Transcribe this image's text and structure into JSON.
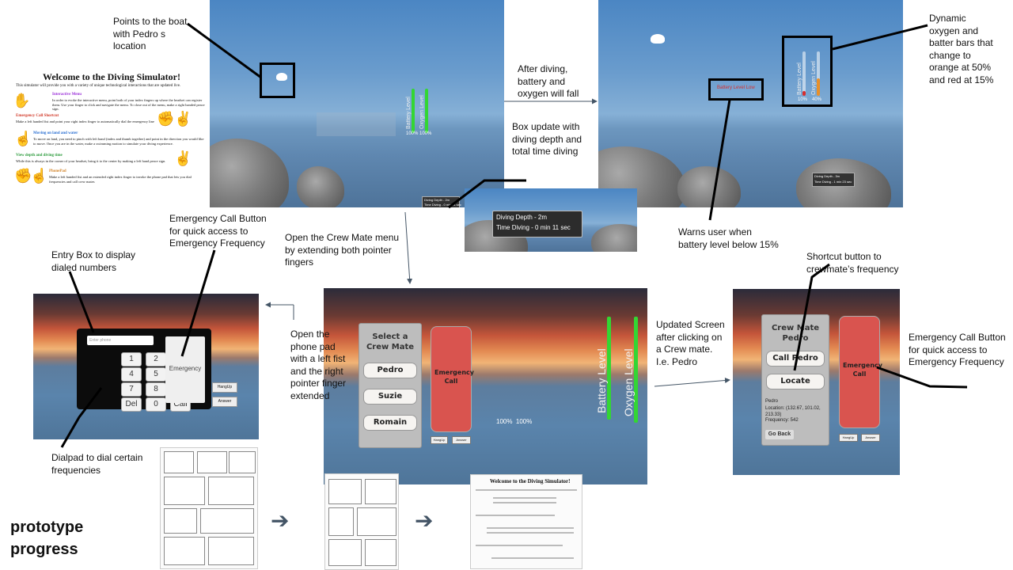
{
  "notes": {
    "boat_pointer": "Points to the boat with Pedro s location",
    "dynamic_bars": "Dynamic oxygen and batter bars that change to orange at 50% and red at 15%",
    "after_diving": "After diving, battery and oxygen will fall",
    "box_update": "Box update with diving depth and total time diving",
    "emergency_button_1": "Emergency Call Button for quick access to Emergency Frequency",
    "open_crew_menu": "Open the Crew Mate menu by extending both pointer fingers",
    "warns_battery": "Warns user when battery level below 15%",
    "shortcut_button": "Shortcut button to crewmate’s frequency",
    "entry_box": "Entry Box to display dialed numbers",
    "open_phone_pad": "Open the phone pad with a left fist and the right pointer finger extended",
    "updated_screen": "Updated Screen after clicking on a Crew mate. I.e. Pedro",
    "emergency_button_2": "Emergency Call Button for quick access to Emergency Frequency",
    "dialpad": "Dialpad to dial certain frequencies",
    "prototype_progress": "prototype progress"
  },
  "welcome_doc": {
    "title": "Welcome to the Diving Simulator!",
    "intro": "This simulator will provide you with a variety of unique technological interactions that are updated live.",
    "sections": [
      {
        "heading": "Interactive Menu",
        "color": "#9b30d9",
        "body": "In order to evoke the interactive menu, point both of your index fingers up where the headset can register them. Use your finger to click and navigate the menu. To close out of the menu, make a right handed peace sign."
      },
      {
        "heading": "Emergency Call Shortcut",
        "color": "#d23a2a",
        "body": "Make a left handed fist and point your right index finger to automatically dial the emergency line"
      },
      {
        "heading": "Moving on land and water",
        "color": "#2a6fd2",
        "body": "To move on land, you need to pinch with left hand (index and thumb together) and point in the direction you would like to move. Once you are in the water, make a swimming motion to simulate your diving experience."
      },
      {
        "heading": "View depth and diving time",
        "color": "#2a9a3a",
        "body": "While this is always in the corner of your headset, bring it to the center by making a left hand peace sign."
      },
      {
        "heading": "PhonePad",
        "color": "#d2842a",
        "body": "Make a left handed fist and an extended right index finger to invoke the phone pad that lets you dial frequencies and call crew mates"
      }
    ]
  },
  "hud_top": {
    "battery_label": "Battery Level",
    "oxygen_label": "Oxygen Level",
    "battery_pct": "100%",
    "oxygen_pct": "100%",
    "battery_fill": 1.0,
    "oxygen_fill": 1.0,
    "bar_color": "#33d633",
    "depth_line": "Diving Depth - 2m",
    "time_line": "Time Diving - 0 min 11 sec"
  },
  "hud_top_after": {
    "battery_label": "Battery Level",
    "oxygen_label": "Oxygen Level",
    "battery_pct": "10%",
    "oxygen_pct": "40%",
    "battery_fill": 0.1,
    "oxygen_fill": 0.4,
    "battery_color": "#d62e2e",
    "oxygen_color": "#e8902a",
    "warning": "Battery Level Low",
    "depth_line": "Diving Depth - 3m",
    "time_line": "Time Diving - 1 min 23 sec"
  },
  "depth_box": {
    "depth_line": "Diving Depth - 2m",
    "time_line": "Time Diving - 0 min 11 sec"
  },
  "phone_pad": {
    "entry_placeholder": "Enter phone",
    "keys": [
      "1",
      "2",
      "3",
      "4",
      "5",
      "6",
      "7",
      "8",
      "9",
      "Del",
      "0",
      "Call"
    ],
    "emergency_label": "Emergency",
    "hangup_label": "HangUp",
    "answer_label": "Answer"
  },
  "crew_menu": {
    "title": "Select a Crew Mate",
    "crew": [
      "Pedro",
      "Suzie",
      "Romain"
    ],
    "emergency_label": "Emergency Call",
    "battery_label": "Battery Level",
    "oxygen_label": "Oxygen Level",
    "percent_line": "100%  100%",
    "hangup_label": "HangUp",
    "answer_label": "Answer"
  },
  "crew_detail": {
    "title": "Crew Mate Pedro",
    "call_label": "Call Pedro",
    "locate_label": "Locate",
    "info_name": "Pedro",
    "info_location": "Location: (132.67, 101.02, 213.33)",
    "info_frequency": "Frequency: 542",
    "back_label": "Go Back",
    "emergency_label": "Emergency Call",
    "hangup_label": "HangUp",
    "answer_label": "Answer"
  },
  "colors": {
    "emergency_red": "#d9544f",
    "bar_green": "#33d633",
    "annotation_line": "#000000"
  }
}
